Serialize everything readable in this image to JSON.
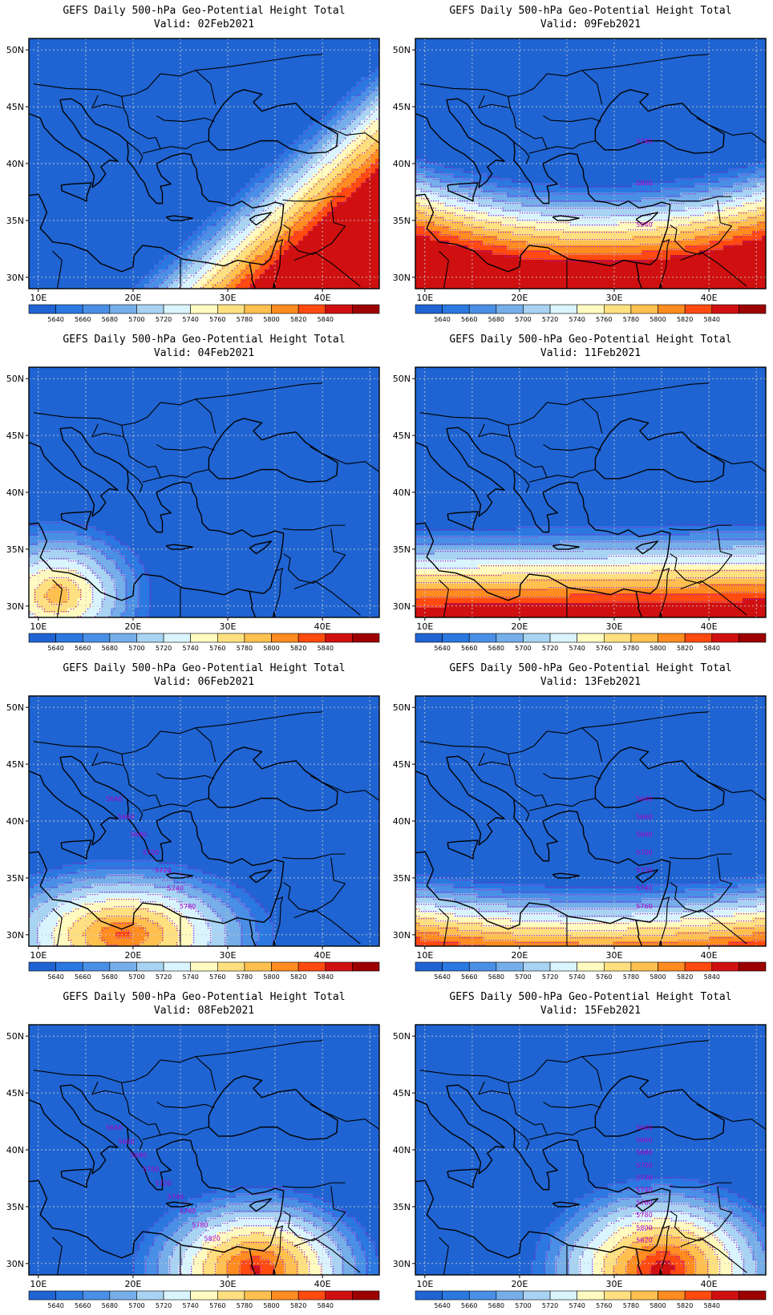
{
  "map": {
    "title_prefix": "GEFS Daily 500-hPa Geo-Potential Height Total",
    "valid_prefix": "Valid:",
    "lat_labels": [
      "30N",
      "35N",
      "40N",
      "45N",
      "50N"
    ],
    "lon_labels": [
      "10E",
      "20E",
      "30E",
      "40E"
    ],
    "extent": {
      "lon": [
        9,
        46
      ],
      "lat": [
        29,
        51
      ]
    }
  },
  "colorbar": {
    "labels": [
      "5640",
      "5660",
      "5680",
      "5700",
      "5720",
      "5740",
      "5760",
      "5780",
      "5800",
      "5820",
      "5840"
    ],
    "colors": [
      "#1f64d2",
      "#2b78e0",
      "#4a8fe6",
      "#75aee9",
      "#a8d3f2",
      "#d9f4fd",
      "#fffac0",
      "#ffe080",
      "#ffc050",
      "#ff8c20",
      "#ff4a10",
      "#d01010",
      "#9c0000"
    ]
  },
  "panels": [
    {
      "date": "02Feb2021",
      "contour_labels": []
    },
    {
      "date": "09Feb2021",
      "contour_labels": [
        "5780",
        "5800",
        "5840"
      ]
    },
    {
      "date": "04Feb2021",
      "contour_labels": []
    },
    {
      "date": "11Feb2021",
      "contour_labels": []
    },
    {
      "date": "06Feb2021",
      "contour_labels": [
        "5640",
        "5660",
        "5680",
        "5700",
        "5720",
        "5740",
        "5780"
      ]
    },
    {
      "date": "13Feb2021",
      "contour_labels": [
        "5640",
        "5660",
        "5680",
        "5700",
        "5720",
        "5740",
        "5760"
      ]
    },
    {
      "date": "08Feb2021",
      "contour_labels": [
        "5640",
        "5660",
        "5680",
        "5700",
        "5720",
        "5740",
        "5760",
        "5780",
        "5820"
      ]
    },
    {
      "date": "15Feb2021",
      "contour_labels": [
        "5640",
        "5660",
        "5680",
        "5700",
        "5720",
        "5740",
        "5760",
        "5780",
        "5800",
        "5820"
      ]
    }
  ]
}
